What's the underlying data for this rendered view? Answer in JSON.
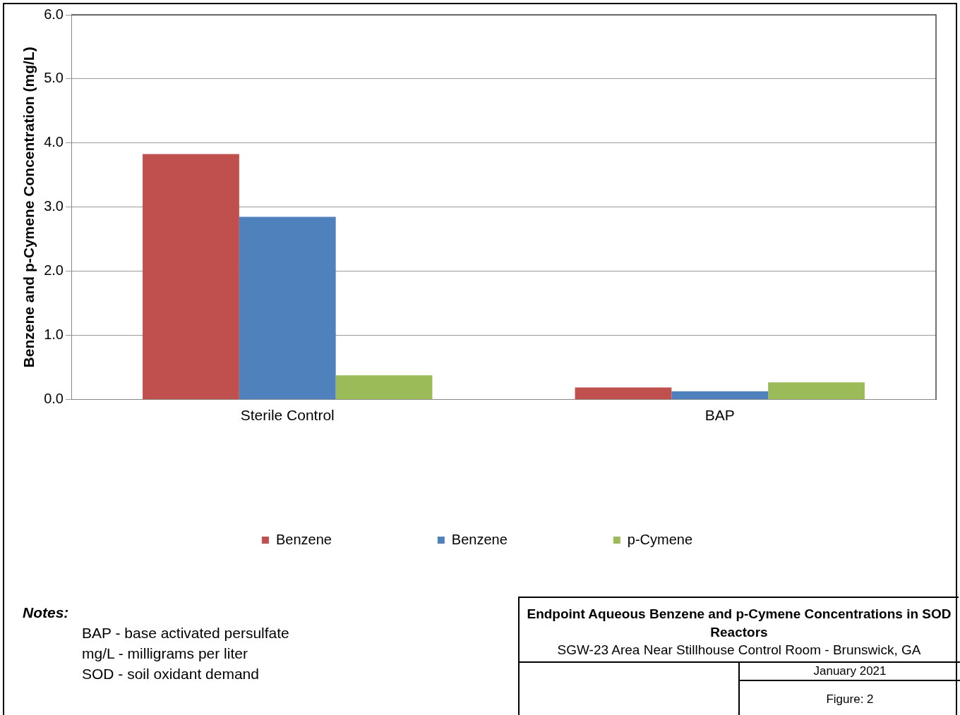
{
  "chart_data": {
    "type": "bar",
    "title": "Endpoint Aqueous Benzene and p-Cymene Concentrations in SOD Reactors",
    "subtitle": "SGW-23 Area Near Stillhouse Control Room - Brunswick, GA",
    "ylabel": "Benzene and p-Cymene Concentration (mg/L)",
    "categories": [
      "Sterile Control",
      "BAP"
    ],
    "series": [
      {
        "name": "Benzene",
        "color": "#c0504d",
        "values": [
          3.83,
          0.19
        ]
      },
      {
        "name": "Benzene",
        "color": "#4f81bd",
        "values": [
          2.85,
          0.13
        ]
      },
      {
        "name": "p-Cymene",
        "color": "#9bbb59",
        "values": [
          0.38,
          0.27
        ]
      }
    ],
    "ylim": [
      0,
      6
    ],
    "yticks": [
      {
        "value": 0,
        "label": "0.0"
      },
      {
        "value": 1,
        "label": "1.0"
      },
      {
        "value": 2,
        "label": "2.0"
      },
      {
        "value": 3,
        "label": "3.0"
      },
      {
        "value": 4,
        "label": "4.0"
      },
      {
        "value": 5,
        "label": "5.0"
      },
      {
        "value": 6,
        "label": "6.0"
      }
    ],
    "grid": "y",
    "legend": "bottom",
    "annotations": [
      "Notes:",
      "BAP - base activated persulfate",
      "mg/L - milligrams per liter",
      "SOD - soil oxidant demand",
      "January 2021",
      "Figure: 2"
    ]
  }
}
